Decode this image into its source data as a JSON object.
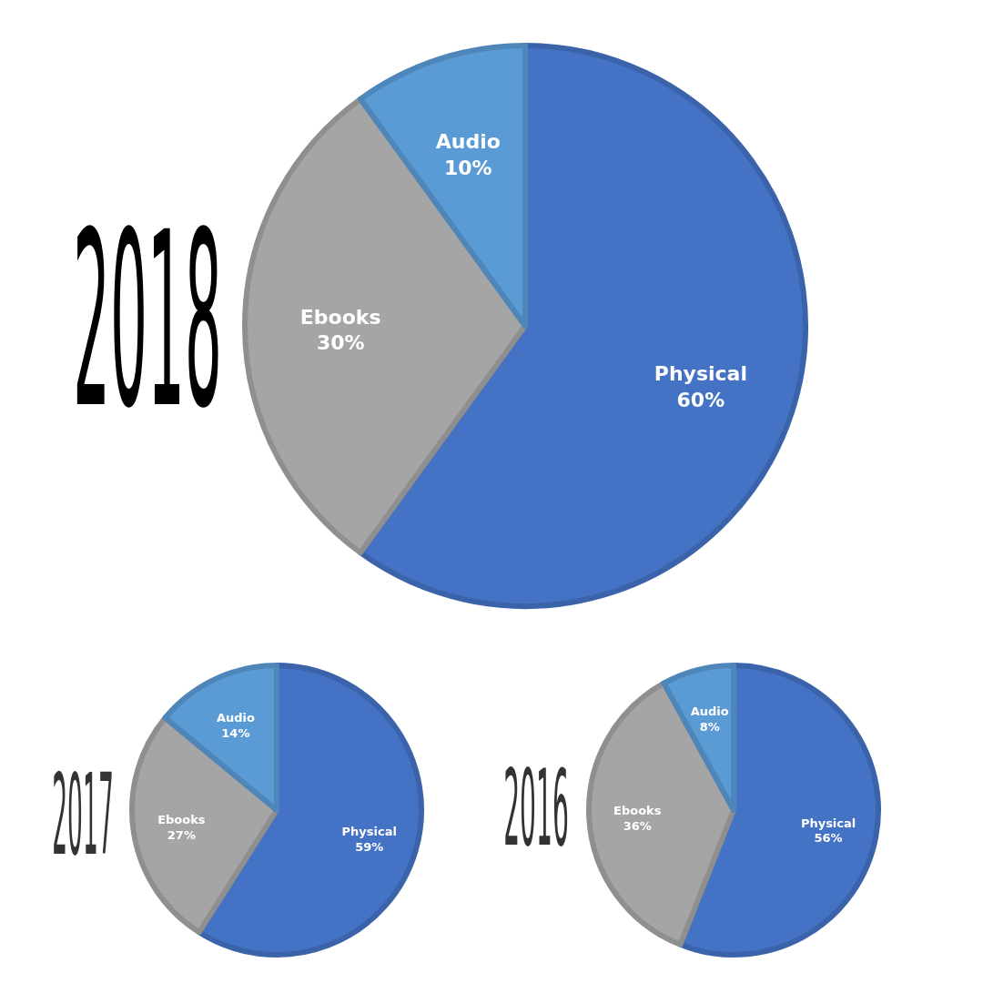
{
  "chart_data": [
    {
      "type": "pie",
      "title": "2018",
      "categories": [
        "Physical",
        "Ebooks",
        "Audio"
      ],
      "values": [
        60,
        30,
        10
      ],
      "colors": [
        "#4472c4",
        "#a5a5a5",
        "#5b9bd5"
      ],
      "value_labels": [
        "60%",
        "30%",
        "10%"
      ]
    },
    {
      "type": "pie",
      "title": "2017",
      "categories": [
        "Physical",
        "Ebooks",
        "Audio"
      ],
      "values": [
        59,
        27,
        14
      ],
      "colors": [
        "#4472c4",
        "#a5a5a5",
        "#5b9bd5"
      ],
      "value_labels": [
        "59%",
        "27%",
        "14%"
      ]
    },
    {
      "type": "pie",
      "title": "2016",
      "categories": [
        "Physical",
        "Ebooks",
        "Audio"
      ],
      "values": [
        56,
        36,
        8
      ],
      "colors": [
        "#4472c4",
        "#a5a5a5",
        "#5b9bd5"
      ],
      "value_labels": [
        "56%",
        "36%",
        "8%"
      ]
    }
  ]
}
